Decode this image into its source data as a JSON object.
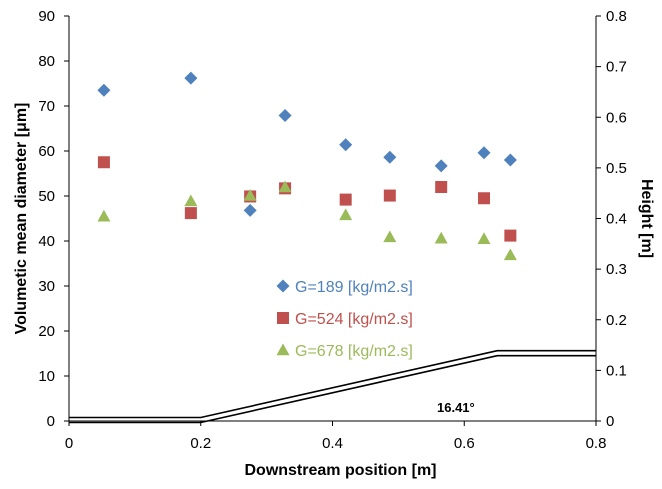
{
  "chart_data": {
    "type": "scatter",
    "xlabel": "Downstream position [m]",
    "ylabel": "Volumetic mean diameter [μm]",
    "y2label": "Height [m]",
    "xlim": [
      0,
      0.8
    ],
    "ylim": [
      0,
      90
    ],
    "y2lim": [
      0,
      0.8
    ],
    "xticks": [
      0,
      0.2,
      0.4,
      0.6,
      0.8
    ],
    "xtick_labels": [
      "0",
      "0.2",
      "0.4",
      "0.6",
      "0.8"
    ],
    "yticks": [
      0,
      10,
      20,
      30,
      40,
      50,
      60,
      70,
      80,
      90
    ],
    "ytick_labels": [
      "0",
      "10",
      "20",
      "30",
      "40",
      "50",
      "60",
      "70",
      "80",
      "90"
    ],
    "y2ticks": [
      0,
      0.1,
      0.2,
      0.3,
      0.4,
      0.5,
      0.6,
      0.7,
      0.8
    ],
    "y2tick_labels": [
      "0",
      "0.1",
      "0.2",
      "0.3",
      "0.4",
      "0.5",
      "0.6",
      "0.7",
      "0.8"
    ],
    "grid": false,
    "legend_position": "center",
    "series": [
      {
        "name": "G=189 [kg/m2.s]",
        "marker": "diamond",
        "color": "#4f81bd",
        "axis": "left",
        "points": [
          [
            0.053,
            73.5
          ],
          [
            0.185,
            76.2
          ],
          [
            0.275,
            46.8
          ],
          [
            0.328,
            67.9
          ],
          [
            0.42,
            61.4
          ],
          [
            0.487,
            58.6
          ],
          [
            0.565,
            56.7
          ],
          [
            0.63,
            59.6
          ],
          [
            0.67,
            58.0
          ]
        ]
      },
      {
        "name": "G=524 [kg/m2.s]",
        "marker": "square",
        "color": "#c0504d",
        "axis": "left",
        "points": [
          [
            0.053,
            57.5
          ],
          [
            0.185,
            46.2
          ],
          [
            0.275,
            49.9
          ],
          [
            0.328,
            51.7
          ],
          [
            0.42,
            49.2
          ],
          [
            0.487,
            50.1
          ],
          [
            0.565,
            52.0
          ],
          [
            0.63,
            49.5
          ],
          [
            0.67,
            41.2
          ]
        ]
      },
      {
        "name": "G=678 [kg/m2.s]",
        "marker": "triangle",
        "color": "#9bbb59",
        "axis": "left",
        "points": [
          [
            0.053,
            45.5
          ],
          [
            0.185,
            48.9
          ],
          [
            0.275,
            50.1
          ],
          [
            0.328,
            52.0
          ],
          [
            0.42,
            45.8
          ],
          [
            0.487,
            40.9
          ],
          [
            0.565,
            40.6
          ],
          [
            0.63,
            40.5
          ],
          [
            0.67,
            36.9
          ]
        ]
      }
    ],
    "profile": {
      "axis": "right",
      "color": "#000000",
      "points": [
        [
          0,
          0.002
        ],
        [
          0.2,
          0.002
        ],
        [
          0.65,
          0.134
        ],
        [
          0.8,
          0.134
        ]
      ]
    },
    "annotation": "16.41°"
  }
}
